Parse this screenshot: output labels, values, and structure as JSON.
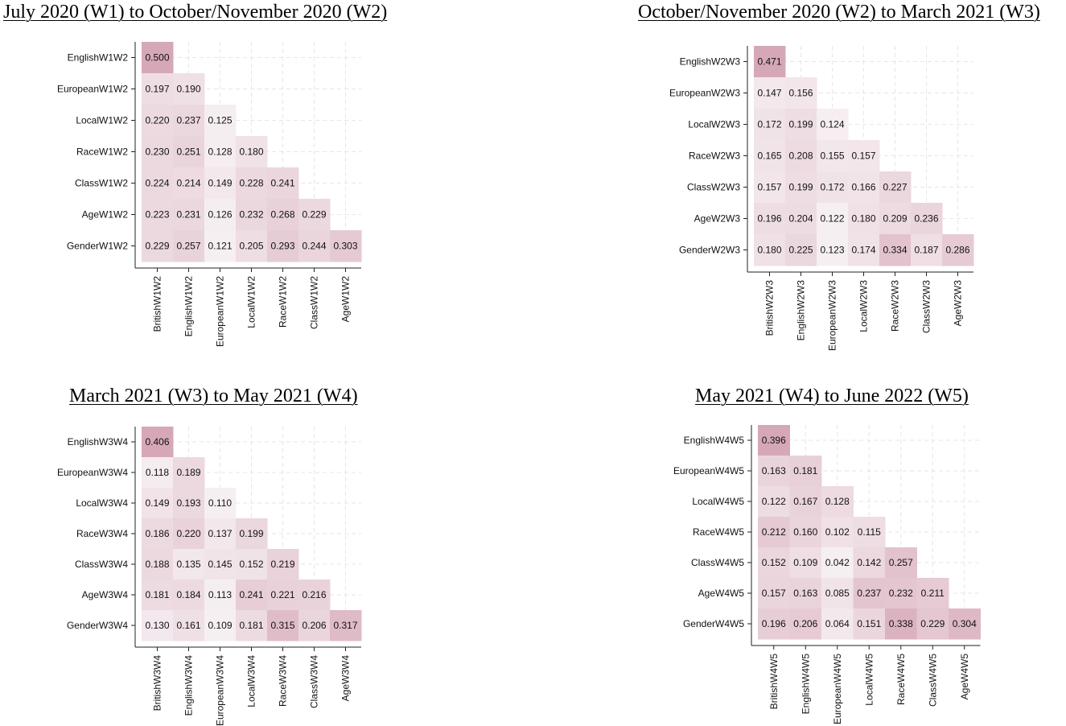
{
  "chart_data": [
    {
      "type": "heatmap",
      "title": "July 2020 (W1) to October/November 2020 (W2)",
      "row_labels": [
        "EnglishW1W2",
        "EuropeanW1W2",
        "LocalW1W2",
        "RaceW1W2",
        "ClassW1W2",
        "AgeW1W2",
        "GenderW1W2"
      ],
      "col_labels": [
        "BritishW1W2",
        "EnglishW1W2",
        "EuropeanW1W2",
        "LocalW1W2",
        "RaceW1W2",
        "ClassW1W2",
        "AgeW1W2"
      ],
      "values": [
        [
          "0.500"
        ],
        [
          "0.197",
          "0.190"
        ],
        [
          "0.220",
          "0.237",
          "0.125"
        ],
        [
          "0.230",
          "0.251",
          "0.128",
          "0.180"
        ],
        [
          "0.224",
          "0.214",
          "0.149",
          "0.228",
          "0.241"
        ],
        [
          "0.223",
          "0.231",
          "0.126",
          "0.232",
          "0.268",
          "0.229"
        ],
        [
          "0.229",
          "0.257",
          "0.121",
          "0.205",
          "0.293",
          "0.244",
          "0.303"
        ]
      ],
      "color_low": "#f6eff2",
      "color_high": "#d6a8b7"
    },
    {
      "type": "heatmap",
      "title": "October/November 2020 (W2) to March 2021 (W3)",
      "row_labels": [
        "EnglishW2W3",
        "EuropeanW2W3",
        "LocalW2W3",
        "RaceW2W3",
        "ClassW2W3",
        "AgeW2W3",
        "GenderW2W3"
      ],
      "col_labels": [
        "BritishW2W3",
        "EnglishW2W3",
        "EuropeanW2W3",
        "LocalW2W3",
        "RaceW2W3",
        "ClassW2W3",
        "AgeW2W3"
      ],
      "values": [
        [
          "0.471"
        ],
        [
          "0.147",
          "0.156"
        ],
        [
          "0.172",
          "0.199",
          "0.124"
        ],
        [
          "0.165",
          "0.208",
          "0.155",
          "0.157"
        ],
        [
          "0.157",
          "0.199",
          "0.172",
          "0.166",
          "0.227"
        ],
        [
          "0.196",
          "0.204",
          "0.122",
          "0.180",
          "0.209",
          "0.236"
        ],
        [
          "0.180",
          "0.225",
          "0.123",
          "0.174",
          "0.334",
          "0.187",
          "0.286"
        ]
      ],
      "color_low": "#f6eff2",
      "color_high": "#d6a8b7"
    },
    {
      "type": "heatmap",
      "title": "March 2021 (W3) to May 2021 (W4)",
      "row_labels": [
        "EnglishW3W4",
        "EuropeanW3W4",
        "LocalW3W4",
        "RaceW3W4",
        "ClassW3W4",
        "AgeW3W4",
        "GenderW3W4"
      ],
      "col_labels": [
        "BritishW3W4",
        "EnglishW3W4",
        "EuropeanW3W4",
        "LocalW3W4",
        "RaceW3W4",
        "ClassW3W4",
        "AgeW3W4"
      ],
      "values": [
        [
          "0.406"
        ],
        [
          "0.118",
          "0.189"
        ],
        [
          "0.149",
          "0.193",
          "0.110"
        ],
        [
          "0.186",
          "0.220",
          "0.137",
          "0.199"
        ],
        [
          "0.188",
          "0.135",
          "0.145",
          "0.152",
          "0.219"
        ],
        [
          "0.181",
          "0.184",
          "0.113",
          "0.241",
          "0.221",
          "0.216"
        ],
        [
          "0.130",
          "0.161",
          "0.109",
          "0.181",
          "0.315",
          "0.206",
          "0.317"
        ]
      ],
      "color_low": "#f6eff2",
      "color_high": "#d6a8b7"
    },
    {
      "type": "heatmap",
      "title": "May 2021 (W4) to June 2022 (W5)",
      "row_labels": [
        "EnglishW4W5",
        "EuropeanW4W5",
        "LocalW4W5",
        "RaceW4W5",
        "ClassW4W5",
        "AgeW4W5",
        "GenderW4W5"
      ],
      "col_labels": [
        "BritishW4W5",
        "EnglishW4W5",
        "EuropeanW4W5",
        "LocalW4W5",
        "RaceW4W5",
        "ClassW4W5",
        "AgeW4W5"
      ],
      "values": [
        [
          "0.396"
        ],
        [
          "0.163",
          "0.181"
        ],
        [
          "0.122",
          "0.167",
          "0.128"
        ],
        [
          "0.212",
          "0.160",
          "0.102",
          "0.115"
        ],
        [
          "0.152",
          "0.109",
          "0.042",
          "0.142",
          "0.257"
        ],
        [
          "0.157",
          "0.163",
          "0.085",
          "0.237",
          "0.232",
          "0.211"
        ],
        [
          "0.196",
          "0.206",
          "0.064",
          "0.151",
          "0.338",
          "0.229",
          "0.304"
        ]
      ],
      "color_low": "#f6eff2",
      "color_high": "#d6a8b7"
    }
  ]
}
